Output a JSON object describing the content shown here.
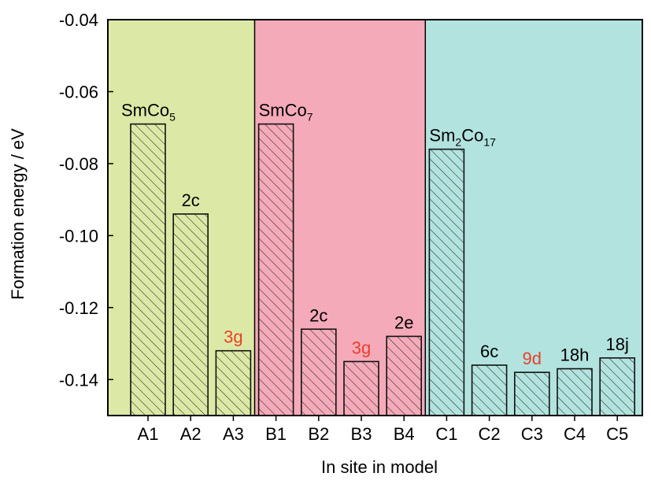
{
  "chart_data": {
    "type": "bar",
    "title": "",
    "xlabel": "In site in model",
    "ylabel": "Formation energy / eV",
    "ylim": [
      -0.15,
      -0.04
    ],
    "yticks": [
      "-0.04",
      "-0.06",
      "-0.08",
      "-0.10",
      "-0.12",
      "-0.14"
    ],
    "ytick_values": [
      -0.04,
      -0.06,
      -0.08,
      -0.1,
      -0.12,
      -0.14
    ],
    "grid": false,
    "categories": [
      "A1",
      "A2",
      "A3",
      "B1",
      "B2",
      "B3",
      "B4",
      "C1",
      "C2",
      "C3",
      "C4",
      "C5"
    ],
    "values": [
      -0.069,
      -0.094,
      -0.132,
      -0.069,
      -0.126,
      -0.135,
      -0.128,
      -0.076,
      -0.136,
      -0.138,
      -0.137,
      -0.134
    ],
    "bar_labels": [
      {
        "main": "SmCo",
        "sub": "5",
        "tail": "",
        "sub2": "",
        "color": "#000000"
      },
      {
        "main": "2c",
        "sub": "",
        "tail": "",
        "sub2": "",
        "color": "#000000"
      },
      {
        "main": "3g",
        "sub": "",
        "tail": "",
        "sub2": "",
        "color": "#e8402a"
      },
      {
        "main": "SmCo",
        "sub": "7",
        "tail": "",
        "sub2": "",
        "color": "#000000"
      },
      {
        "main": "2c",
        "sub": "",
        "tail": "",
        "sub2": "",
        "color": "#000000"
      },
      {
        "main": "3g",
        "sub": "",
        "tail": "",
        "sub2": "",
        "color": "#e8402a"
      },
      {
        "main": "2e",
        "sub": "",
        "tail": "",
        "sub2": "",
        "color": "#000000"
      },
      {
        "main": "Sm",
        "sub": "2",
        "tail": "Co",
        "sub2": "17",
        "color": "#000000"
      },
      {
        "main": "6c",
        "sub": "",
        "tail": "",
        "sub2": "",
        "color": "#000000"
      },
      {
        "main": "9d",
        "sub": "",
        "tail": "",
        "sub2": "",
        "color": "#e8402a"
      },
      {
        "main": "18h",
        "sub": "",
        "tail": "",
        "sub2": "",
        "color": "#000000"
      },
      {
        "main": "18j",
        "sub": "",
        "tail": "",
        "sub2": "",
        "color": "#000000"
      }
    ],
    "groups": [
      {
        "range": [
          0,
          2
        ],
        "background": "#dce9a6",
        "bar_color": "#dce9a6"
      },
      {
        "range": [
          3,
          6
        ],
        "background": "#f5aab9",
        "bar_color": "#f5aab9"
      },
      {
        "range": [
          7,
          11
        ],
        "background": "#b2e3df",
        "bar_color": "#b2e3df"
      }
    ],
    "hatch": "diagonal"
  }
}
